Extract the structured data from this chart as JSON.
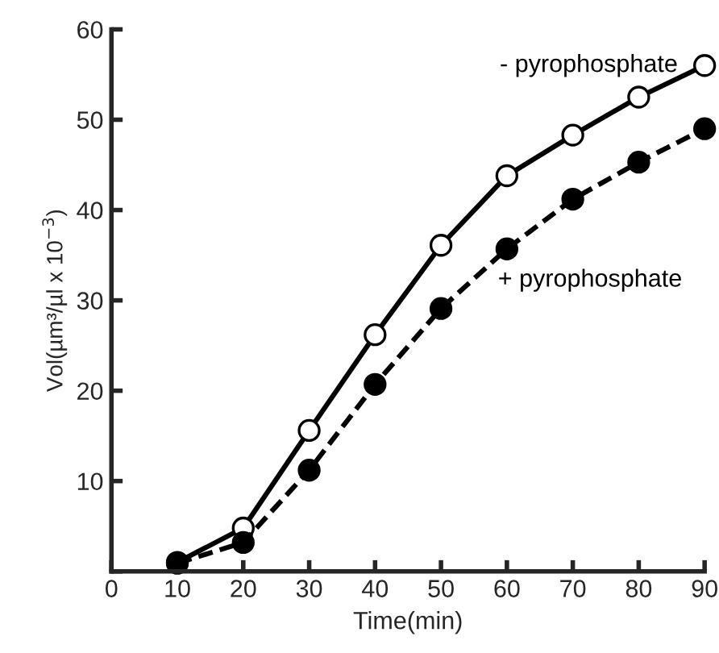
{
  "chart_data": {
    "type": "line",
    "xlabel": "Time(min)",
    "ylabel": "Vol(µm³/µl x 10$^{−3}$)",
    "x": [
      10,
      20,
      30,
      40,
      50,
      60,
      70,
      80,
      90
    ],
    "series": [
      {
        "name": "- pyrophosphate",
        "color": "#000000",
        "marker": "circle",
        "line_style": "solid",
        "values": [
          1.0,
          4.8,
          15.6,
          26.2,
          36.1,
          43.8,
          48.3,
          52.5,
          56.0
        ]
      },
      {
        "name": "+ pyrophosphate",
        "color": "#000000",
        "marker": "circle",
        "line_style": "dashed",
        "values": [
          0.9,
          3.2,
          11.2,
          20.7,
          29.1,
          35.7,
          41.2,
          45.3,
          49.0
        ]
      }
    ],
    "xlim": [
      0,
      90
    ],
    "ylim": [
      0,
      60
    ],
    "xticks": [
      0,
      10,
      20,
      30,
      40,
      50,
      60,
      70,
      80,
      90
    ],
    "yticks": [
      {
        "value": 0,
        "label": null
      },
      10,
      20,
      30,
      40,
      50,
      60
    ],
    "grid": false,
    "legend": false
  }
}
